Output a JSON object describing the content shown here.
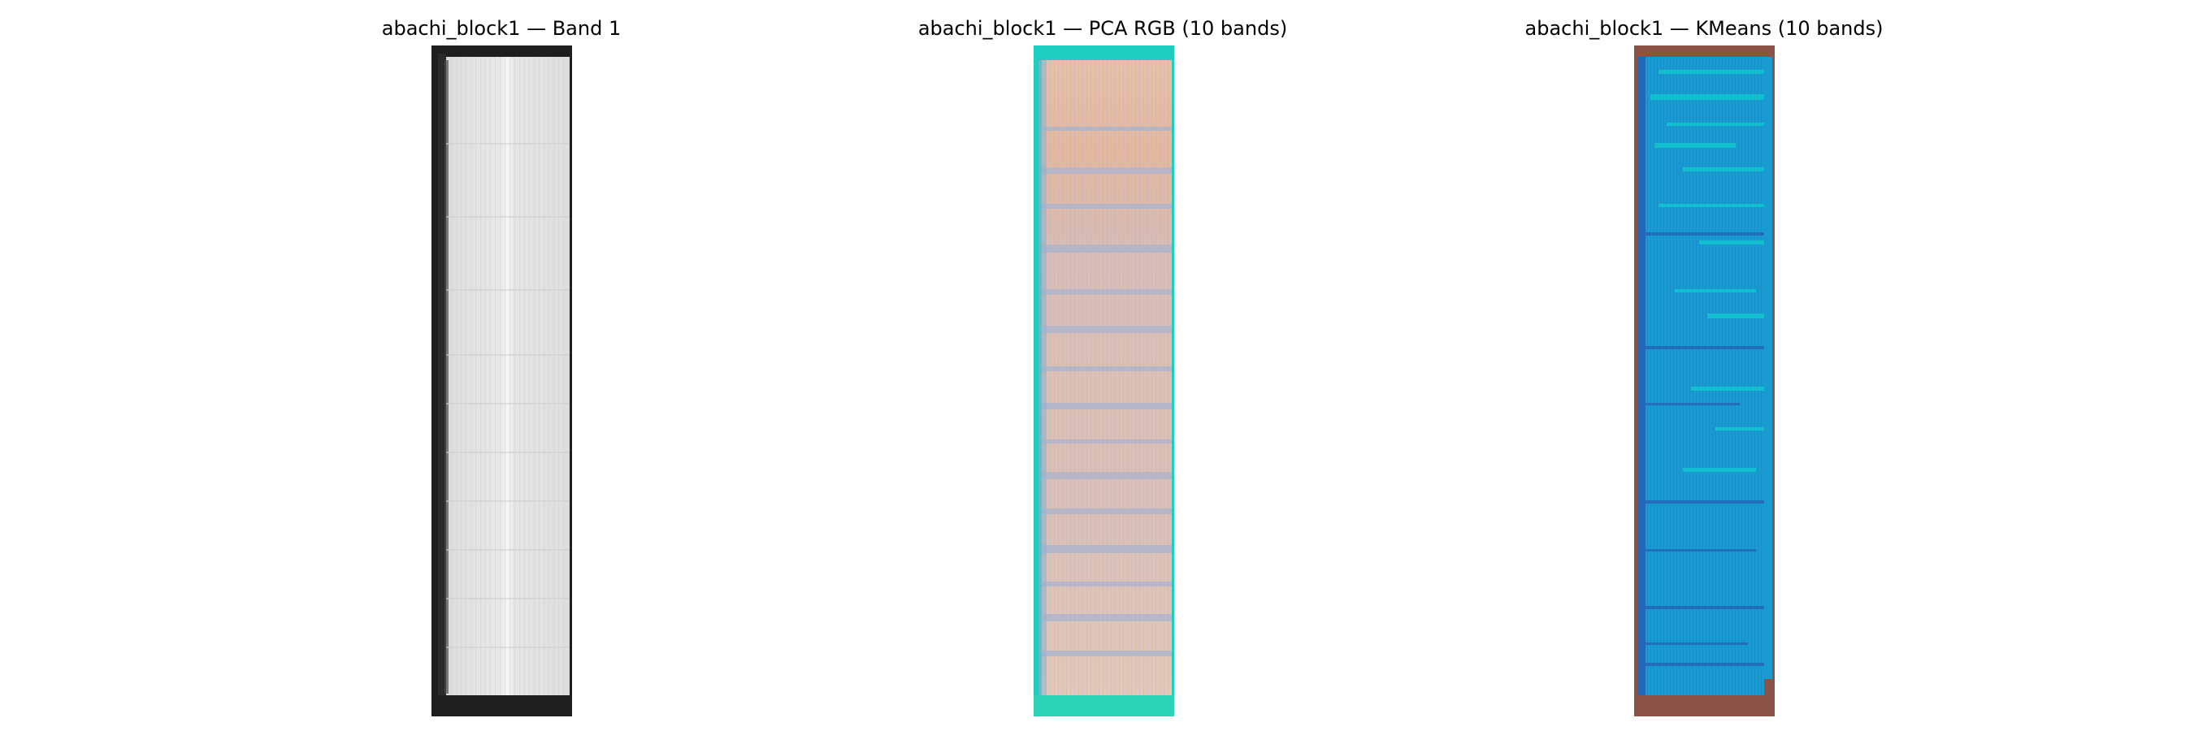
{
  "figure": {
    "panels": [
      {
        "title": "abachi_block1 — Band 1"
      },
      {
        "title": "abachi_block1 — PCA RGB (10 bands)"
      },
      {
        "title": "abachi_block1 — KMeans (10 bands)"
      }
    ]
  },
  "colors": {
    "band_background": "#1e1e1e",
    "band_wood": "#e6e6e6",
    "pca_border": "#1ecfc0",
    "pca_wood_light": "#e8c4b0",
    "pca_wood_band": "#a9b4cf",
    "kmeans_background": "#8b5346",
    "kmeans_primary": "#1a9ad0",
    "kmeans_dark": "#2367b8",
    "kmeans_light": "#13c2d2"
  }
}
